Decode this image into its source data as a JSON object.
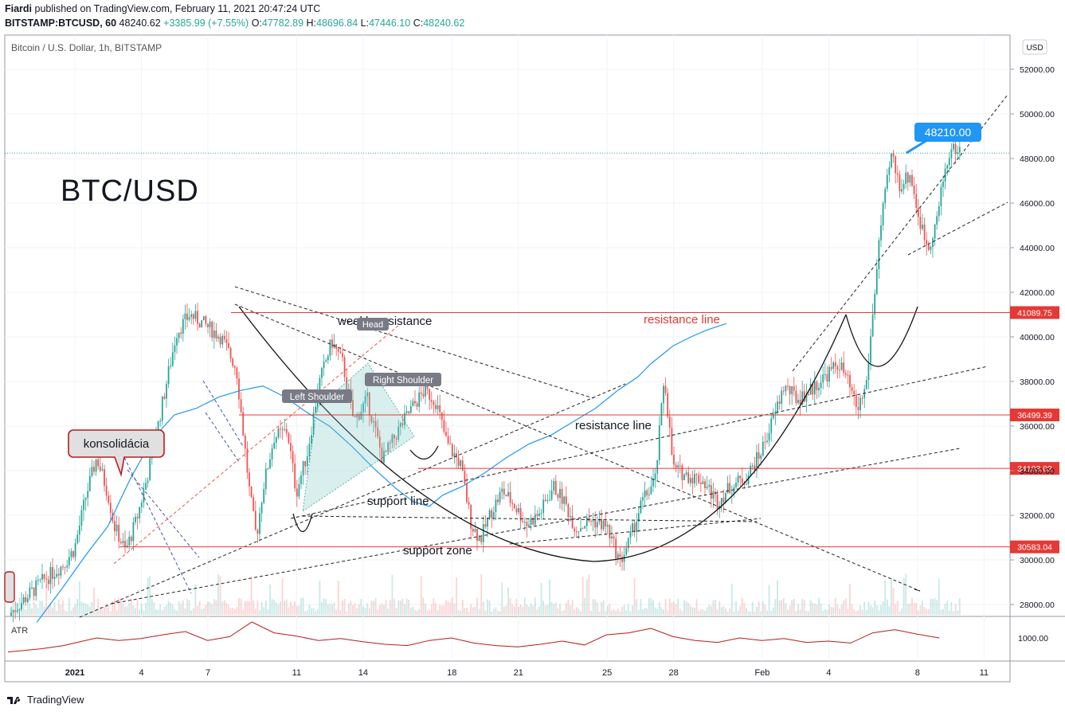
{
  "header": {
    "author": "Fiardi",
    "published_text": "published on TradingView.com, February 11, 2021 20:47:24 UTC",
    "symbol": "BITSTAMP:BTCUSD, 60",
    "last": "48240.62",
    "change": "+3385.99 (+7.55%)",
    "o_label": "O:",
    "o": "47782.89",
    "h_label": "H:",
    "h": "48696.84",
    "l_label": "L:",
    "l": "47446.10",
    "c_label": "C:",
    "c": "48240.62"
  },
  "chart_title": "Bitcoin / U.S. Dollar, 1h, BITSTAMP",
  "currency_label": "USD",
  "big_label": "BTC/USD",
  "atr_label": "ATR",
  "footer_brand": "TradingView",
  "colors": {
    "up": "#26a69a",
    "down": "#ef5350",
    "ma": "#2196f3",
    "hline": "#e53935",
    "atr": "#b71c1c",
    "tag_bg": "#2196f3",
    "pattern_fill": "#80cbc4"
  },
  "annotations": {
    "konsolidacia": "konsolidácia",
    "weekly_resistance": "weekly resistance",
    "head": "Head",
    "left_shoulder": "Left Shoulder",
    "right_shoulder": "Right Shoulder",
    "resistance_line_1": "resistance line",
    "resistance_line_2": "resistance line",
    "support_line": "support line",
    "support_zone": "support zone",
    "price_tag": "48210.00"
  },
  "chart_data": {
    "type": "candlestick",
    "title": "Bitcoin / U.S. Dollar, 1h, BITSTAMP",
    "x_ticks": [
      "2021",
      "4",
      "7",
      "11",
      "14",
      "18",
      "21",
      "25",
      "28",
      "Feb",
      "4",
      "8",
      "11"
    ],
    "y_ticks": [
      "52000.00",
      "50000.00",
      "48000.00",
      "46000.00",
      "44000.00",
      "42000.00",
      "40000.00",
      "38000.00",
      "36000.00",
      "34000.00",
      "32000.00",
      "30000.00",
      "28000.00"
    ],
    "ylim": [
      27200,
      53000
    ],
    "atr_ticks": [
      "1000.00"
    ],
    "price_path": [
      [
        0,
        27500
      ],
      [
        1.5,
        29000
      ],
      [
        2.5,
        29800
      ],
      [
        3,
        30500
      ],
      [
        3.5,
        32800
      ],
      [
        4,
        34600
      ],
      [
        4.5,
        33000
      ],
      [
        4.8,
        31500
      ],
      [
        5.3,
        30400
      ],
      [
        5.8,
        31800
      ],
      [
        6.3,
        33800
      ],
      [
        6.8,
        36200
      ],
      [
        7.2,
        38200
      ],
      [
        7.6,
        40200
      ],
      [
        8.2,
        41000
      ],
      [
        8.8,
        40600
      ],
      [
        9.6,
        40000
      ],
      [
        10.3,
        38600
      ],
      [
        10.9,
        33000
      ],
      [
        11.2,
        31000
      ],
      [
        11.5,
        33200
      ],
      [
        12,
        35500
      ],
      [
        12.6,
        35800
      ],
      [
        13,
        33000
      ],
      [
        13.5,
        34800
      ],
      [
        14,
        37800
      ],
      [
        14.6,
        39800
      ],
      [
        15.1,
        38800
      ],
      [
        15.6,
        36200
      ],
      [
        16.2,
        37200
      ],
      [
        16.9,
        34500
      ],
      [
        17.6,
        35800
      ],
      [
        18.2,
        36800
      ],
      [
        18.8,
        37600
      ],
      [
        19.3,
        37100
      ],
      [
        19.8,
        35200
      ],
      [
        20.4,
        34300
      ],
      [
        20.9,
        31600
      ],
      [
        21.3,
        30900
      ],
      [
        21.8,
        32200
      ],
      [
        22.3,
        33100
      ],
      [
        22.8,
        32500
      ],
      [
        23.4,
        31600
      ],
      [
        24,
        32100
      ],
      [
        24.6,
        33300
      ],
      [
        25.1,
        32600
      ],
      [
        25.6,
        31400
      ],
      [
        26.3,
        31800
      ],
      [
        27,
        31500
      ],
      [
        27.6,
        29900
      ],
      [
        28,
        30800
      ],
      [
        28.6,
        32600
      ],
      [
        29.2,
        33600
      ],
      [
        29.6,
        38300
      ],
      [
        30,
        34100
      ],
      [
        30.6,
        33800
      ],
      [
        31.3,
        33600
      ],
      [
        32,
        32600
      ],
      [
        32.6,
        33300
      ],
      [
        33.3,
        33700
      ],
      [
        33.9,
        34700
      ],
      [
        34.5,
        36300
      ],
      [
        35,
        37800
      ],
      [
        35.6,
        37200
      ],
      [
        36.2,
        37600
      ],
      [
        36.9,
        38300
      ],
      [
        37.5,
        38800
      ],
      [
        37.9,
        37900
      ],
      [
        38.3,
        36700
      ],
      [
        38.7,
        37800
      ],
      [
        39,
        41000
      ],
      [
        39.3,
        44500
      ],
      [
        39.6,
        46600
      ],
      [
        39.85,
        48200
      ],
      [
        40.2,
        46800
      ],
      [
        40.7,
        47300
      ],
      [
        41.1,
        45200
      ],
      [
        41.5,
        44000
      ],
      [
        41.9,
        45300
      ],
      [
        42.2,
        47200
      ],
      [
        42.5,
        48400
      ]
    ],
    "ma_path": [
      [
        1.3,
        27200
      ],
      [
        2.5,
        28800
      ],
      [
        3.5,
        30200
      ],
      [
        4.5,
        31500
      ],
      [
        5.5,
        33600
      ],
      [
        6.5,
        35400
      ],
      [
        7.5,
        36500
      ],
      [
        8.5,
        36800
      ],
      [
        9.5,
        37300
      ],
      [
        10.5,
        37600
      ],
      [
        11.5,
        37800
      ],
      [
        12.5,
        37300
      ],
      [
        13.5,
        36600
      ],
      [
        14.5,
        36000
      ],
      [
        15.5,
        35100
      ],
      [
        16.5,
        34100
      ],
      [
        17.5,
        33200
      ],
      [
        18.3,
        32600
      ],
      [
        19,
        32400
      ],
      [
        19.6,
        32900
      ],
      [
        20.5,
        33300
      ],
      [
        21.5,
        33900
      ],
      [
        22.5,
        34600
      ],
      [
        23.5,
        35200
      ],
      [
        24.5,
        35600
      ],
      [
        25.5,
        36200
      ],
      [
        26.5,
        36800
      ],
      [
        27.5,
        37600
      ],
      [
        28.4,
        38200
      ],
      [
        29,
        38800
      ],
      [
        29.5,
        39200
      ],
      [
        30,
        39600
      ],
      [
        30.8,
        40000
      ],
      [
        31.5,
        40300
      ],
      [
        32.4,
        40600
      ]
    ],
    "atr_path": [
      [
        0,
        780
      ],
      [
        1.5,
        830
      ],
      [
        2.5,
        880
      ],
      [
        3,
        920
      ],
      [
        4,
        1000
      ],
      [
        5,
        960
      ],
      [
        6,
        990
      ],
      [
        7,
        1050
      ],
      [
        8,
        1100
      ],
      [
        9,
        960
      ],
      [
        10,
        1020
      ],
      [
        11,
        1250
      ],
      [
        12,
        1080
      ],
      [
        13,
        1030
      ],
      [
        14,
        960
      ],
      [
        15,
        990
      ],
      [
        16,
        940
      ],
      [
        17,
        900
      ],
      [
        18,
        880
      ],
      [
        19,
        960
      ],
      [
        20,
        1000
      ],
      [
        21,
        920
      ],
      [
        22,
        880
      ],
      [
        23,
        860
      ],
      [
        24,
        900
      ],
      [
        25,
        950
      ],
      [
        26,
        890
      ],
      [
        27,
        1050
      ],
      [
        28,
        1080
      ],
      [
        29,
        1150
      ],
      [
        30,
        1020
      ],
      [
        31,
        960
      ],
      [
        32,
        930
      ],
      [
        33,
        1000
      ],
      [
        34,
        960
      ],
      [
        35,
        990
      ],
      [
        36,
        930
      ],
      [
        37,
        950
      ],
      [
        38,
        920
      ],
      [
        39,
        1080
      ],
      [
        40,
        1130
      ],
      [
        41,
        1060
      ],
      [
        42,
        1000
      ]
    ],
    "horizontal_levels": [
      41089.75,
      36499.39,
      34103.02,
      30583.04
    ],
    "level_labels": [
      "41089.75",
      "36499.39",
      "34103.02",
      "30583.04"
    ],
    "current_price": 48240.62
  }
}
